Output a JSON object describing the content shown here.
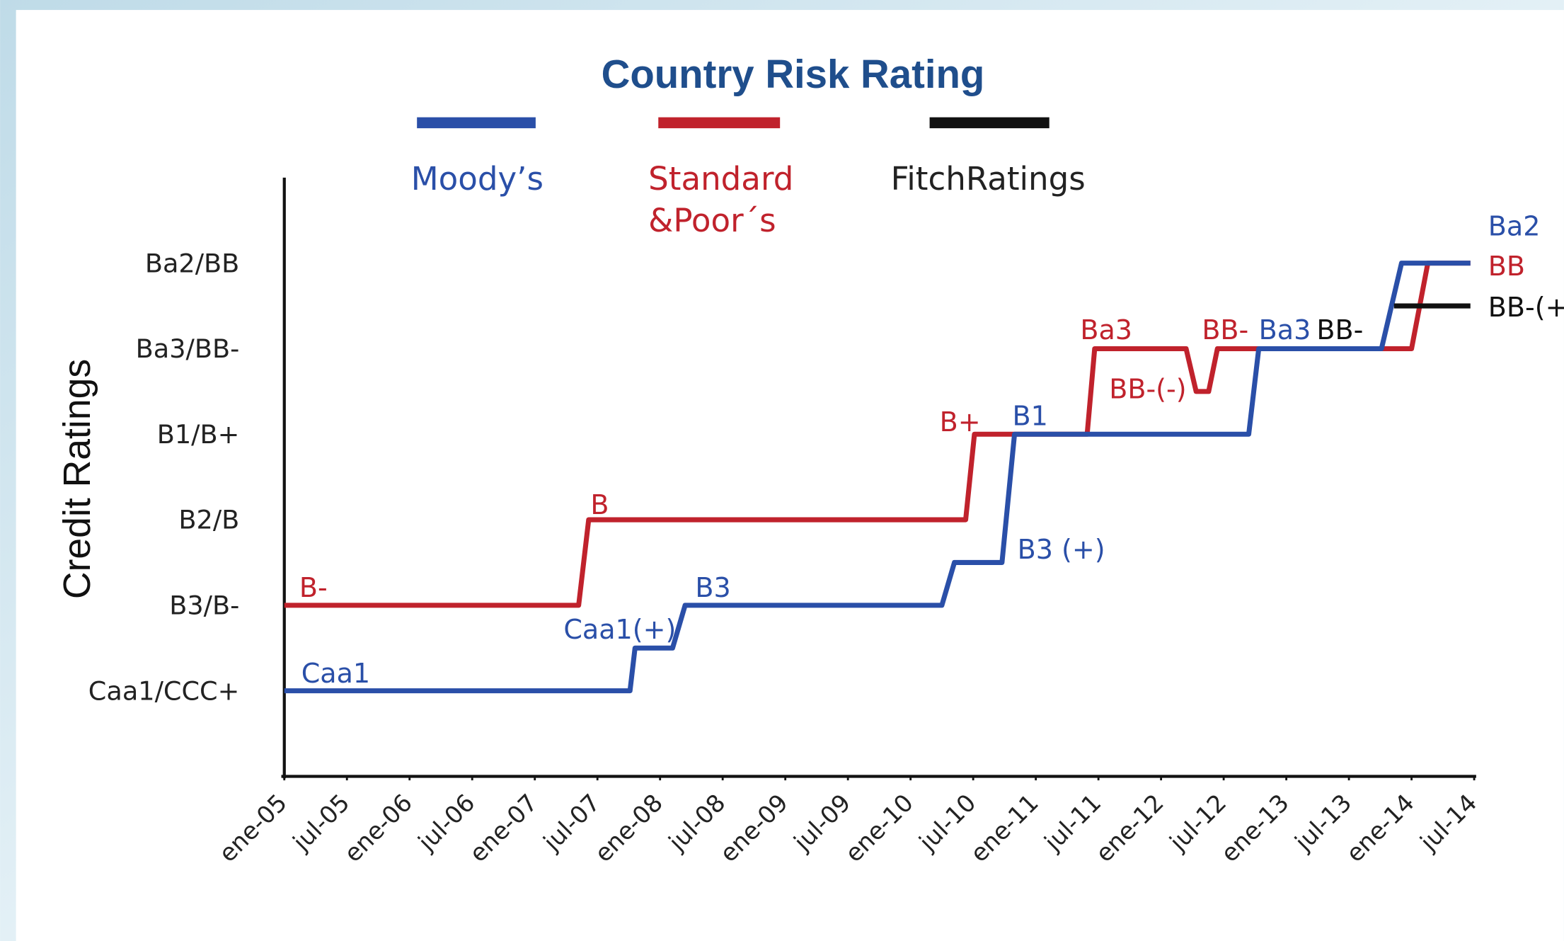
{
  "chart_data": {
    "type": "step-line",
    "title": "Country Risk Rating",
    "ylabel": "Credit Ratings",
    "xlim": [
      2005,
      2014.5
    ],
    "xticks": [
      {
        "value": 2005,
        "label": "ene-05"
      },
      {
        "value": 2005.5,
        "label": "jul-05"
      },
      {
        "value": 2006,
        "label": "ene-06"
      },
      {
        "value": 2006.5,
        "label": "jul-06"
      },
      {
        "value": 2007,
        "label": "ene-07"
      },
      {
        "value": 2007.5,
        "label": "jul-07"
      },
      {
        "value": 2008,
        "label": "ene-08"
      },
      {
        "value": 2008.5,
        "label": "jul-08"
      },
      {
        "value": 2009,
        "label": "ene-09"
      },
      {
        "value": 2009.5,
        "label": "jul-09"
      },
      {
        "value": 2010,
        "label": "ene-10"
      },
      {
        "value": 2010.5,
        "label": "jul-10"
      },
      {
        "value": 2011,
        "label": "ene-11"
      },
      {
        "value": 2011.5,
        "label": "jul-11"
      },
      {
        "value": 2012,
        "label": "ene-12"
      },
      {
        "value": 2012.5,
        "label": "jul-12"
      },
      {
        "value": 2013,
        "label": "ene-13"
      },
      {
        "value": 2013.5,
        "label": "jul-13"
      },
      {
        "value": 2014,
        "label": "ene-14"
      },
      {
        "value": 2014.5,
        "label": "jul-14"
      }
    ],
    "ylim": [
      0,
      7
    ],
    "yticks": [
      {
        "value": 1,
        "label": "Caa1/CCC+"
      },
      {
        "value": 2,
        "label": "B3/B-"
      },
      {
        "value": 3,
        "label": "B2/B"
      },
      {
        "value": 4,
        "label": "B1/B+"
      },
      {
        "value": 5,
        "label": "Ba3/BB-"
      },
      {
        "value": 6,
        "label": "Ba2/BB"
      }
    ],
    "series": [
      {
        "name": "Moody’s",
        "color": "#2a4fa8",
        "x": [
          2005.0,
          2007.76,
          2007.8,
          2008.1,
          2008.2,
          2010.25,
          2010.35,
          2010.73,
          2010.83,
          2012.7,
          2012.78,
          2013.76,
          2013.92,
          2014.47
        ],
        "values": [
          1,
          1,
          1.5,
          1.5,
          2,
          2,
          2.5,
          2.5,
          4,
          4,
          5,
          5,
          6,
          6
        ]
      },
      {
        "name": "Standard &Poor´s",
        "color": "#c0222c",
        "x": [
          2005.0,
          2007.35,
          2007.43,
          2010.44,
          2010.51,
          2011.41,
          2011.47,
          2012.2,
          2012.28,
          2012.38,
          2012.45,
          2014.0,
          2014.13,
          2014.47
        ],
        "values": [
          2,
          2,
          3,
          3,
          4,
          4,
          5,
          5,
          4.5,
          4.5,
          5,
          5,
          6,
          6
        ]
      },
      {
        "name": "FitchRatings",
        "color": "#111111",
        "x": [
          2013.86,
          2014.47
        ],
        "values": [
          5.5,
          5.5
        ]
      }
    ],
    "annotations": [
      {
        "text": "Caa1",
        "color": "#2a4fa8"
      },
      {
        "text": "B-",
        "color": "#c0222c"
      },
      {
        "text": "Caa1(+)",
        "color": "#2a4fa8"
      },
      {
        "text": "B3",
        "color": "#2a4fa8"
      },
      {
        "text": "B",
        "color": "#c0222c"
      },
      {
        "text": "B3 (+)",
        "color": "#2a4fa8"
      },
      {
        "text": "B+",
        "color": "#c0222c"
      },
      {
        "text": "B1",
        "color": "#2a4fa8"
      },
      {
        "text": "Ba3",
        "color": "#c0222c"
      },
      {
        "text": "BB-(-)",
        "color": "#c0222c"
      },
      {
        "text": "BB-",
        "color": "#c0222c"
      },
      {
        "text": "Ba3",
        "color": "#2a4fa8"
      },
      {
        "text": "BB-",
        "color": "#111111"
      },
      {
        "text": "Ba2",
        "color": "#2a4fa8"
      },
      {
        "text": "BB",
        "color": "#c0222c"
      },
      {
        "text": "BB-(+)",
        "color": "#111111"
      }
    ]
  }
}
